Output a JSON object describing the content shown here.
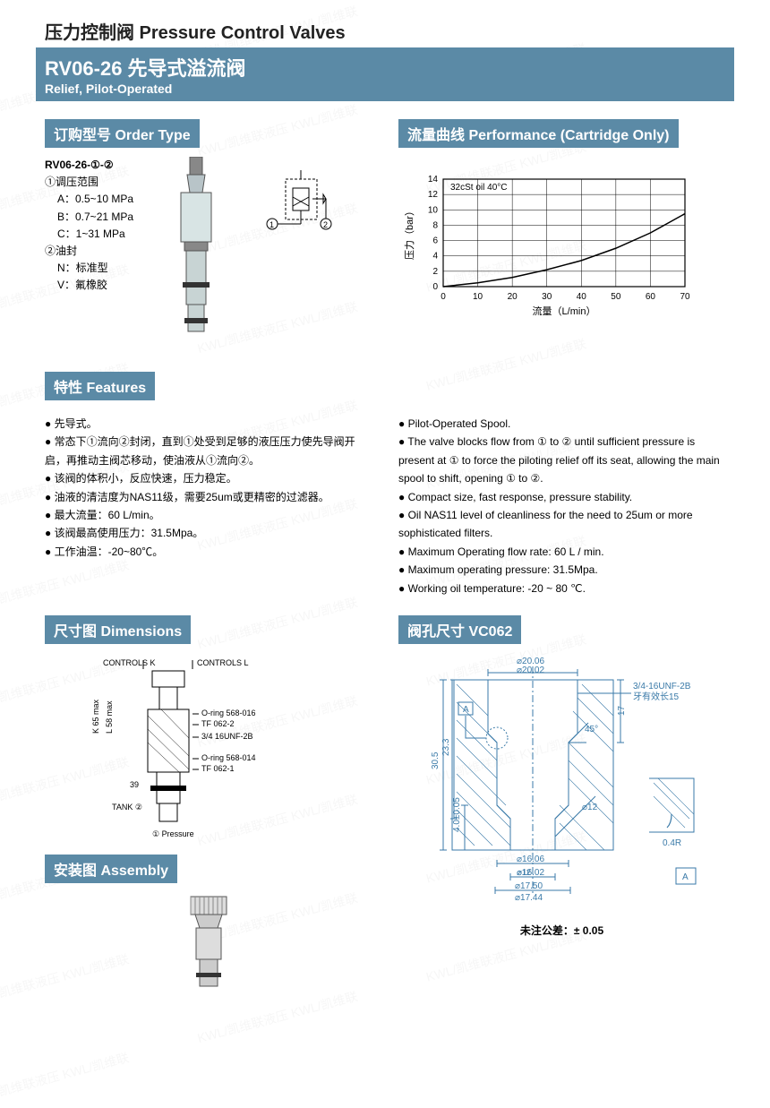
{
  "watermark_text": "KWL/凯维联液压 KWL/凯维联",
  "header": {
    "title_cn": "压力控制阀 Pressure Control Valves",
    "band_main": "RV06-26 先导式溢流阀",
    "band_sub": "Relief, Pilot-Operated"
  },
  "order_type": {
    "header": "订购型号 Order Type",
    "model": "RV06-26-①-②",
    "group1_label": "①调压范围",
    "group1_opts": [
      "A：0.5~10 MPa",
      "B：0.7~21 MPa",
      "C：1~31 MPa"
    ],
    "group2_label": "②油封",
    "group2_opts": [
      "N：标准型",
      "V：氟橡胶"
    ]
  },
  "performance": {
    "header": "流量曲线 Performance (Cartridge Only)",
    "chart": {
      "legend": "32cSt oil 40°C",
      "ylabel": "压力（bar）",
      "xlabel": "流量（L/min）",
      "xlim": [
        0,
        70
      ],
      "xtick_step": 10,
      "ylim": [
        0,
        14
      ],
      "ytick_step": 2,
      "line_color": "#000000",
      "points_x": [
        0,
        10,
        20,
        30,
        40,
        50,
        60,
        70
      ],
      "points_y": [
        0,
        0.5,
        1.2,
        2.2,
        3.4,
        5.0,
        7.0,
        9.5
      ]
    }
  },
  "features": {
    "header": "特性 Features",
    "cn": [
      "先导式。",
      "常态下①流向②封闭，直到①处受到足够的液压压力使先导阀开启，再推动主阀芯移动，使油液从①流向②。",
      "该阀的体积小，反应快速，压力稳定。",
      "油液的清洁度为NAS11级，需要25um或更精密的过滤器。",
      "最大流量：60 L/min。",
      "该阀最高使用压力：31.5Mpa。",
      "工作油温：-20~80℃。"
    ],
    "en": [
      "Pilot-Operated Spool.",
      "The valve blocks flow from ① to ② until sufficient pressure is present at ① to force the piloting relief off its seat, allowing the main spool to shift, opening ① to ②.",
      "Compact size, fast response, pressure stability.",
      "Oil NAS11 level of cleanliness for the need to 25um or more sophisticated filters.",
      "Maximum Operating flow rate: 60 L / min.",
      "Maximum operating pressure: 31.5Mpa.",
      "Working oil temperature: -20 ~ 80 ℃."
    ]
  },
  "dimensions": {
    "header": "尺寸图 Dimensions",
    "labels": {
      "controls_k": "CONTROLS K",
      "controls_l": "CONTROLS L",
      "k65": "K 65 max",
      "l58": "L 58 max",
      "oring1": "O-ring 568-016",
      "tf1": "TF 062-2",
      "thread": "3/4 16UNF-2B",
      "oring2": "O-ring 568-014",
      "tf2": "TF 062-1",
      "dim39": "39",
      "tank": "TANK ②",
      "pressure": "① Pressure"
    }
  },
  "assembly": {
    "header": "安装图 Assembly"
  },
  "cavity": {
    "header": "阀孔尺寸 VC062",
    "thread": "3/4-16UNF-2B",
    "thread_note": "牙有效长15",
    "dims": {
      "d1": "⌀20.06",
      "d1b": "⌀20.02",
      "h1": "30.5",
      "h2": "23.3",
      "h3": "4.0±0.05",
      "ang": "45°",
      "h4": "17",
      "d2": "⌀12",
      "d3": "⌀16.06",
      "d3b": "⌀16.02",
      "d4": "⌀17.50",
      "d4b": "⌀17.44",
      "r": "0.4R",
      "box_a": "A"
    },
    "tolerance": "未注公差：± 0.05"
  },
  "colors": {
    "band": "#5b8aa6",
    "cavity_line": "#3a7aa8",
    "text": "#222222"
  }
}
